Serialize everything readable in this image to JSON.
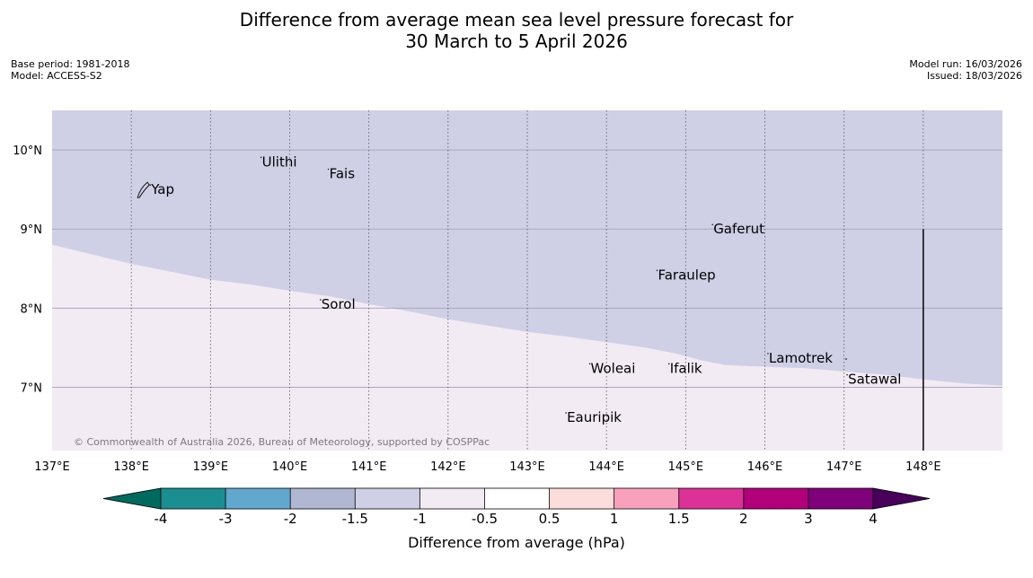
{
  "title": {
    "line1": "Difference from average mean sea level pressure forecast for",
    "line2": "30 March to 5 April 2026"
  },
  "meta_left": {
    "base_period": "Base period: 1981-2018",
    "model": "Model: ACCESS-S2"
  },
  "meta_right": {
    "model_run": "Model run: 16/03/2026",
    "issued": "Issued: 18/03/2026"
  },
  "map": {
    "lon_range": [
      137,
      149
    ],
    "lat_range": [
      6.2,
      10.5
    ],
    "lat_ticks": [
      {
        "value": 10,
        "label": "10°N"
      },
      {
        "value": 9,
        "label": "9°N"
      },
      {
        "value": 8,
        "label": "8°N"
      },
      {
        "value": 7,
        "label": "7°N"
      }
    ],
    "lon_ticks": [
      {
        "value": 137,
        "label": "137°E"
      },
      {
        "value": 138,
        "label": "138°E"
      },
      {
        "value": 139,
        "label": "139°E"
      },
      {
        "value": 140,
        "label": "140°E"
      },
      {
        "value": 141,
        "label": "141°E"
      },
      {
        "value": 142,
        "label": "142°E"
      },
      {
        "value": 143,
        "label": "143°E"
      },
      {
        "value": 144,
        "label": "144°E"
      },
      {
        "value": 145,
        "label": "145°E"
      },
      {
        "value": 146,
        "label": "146°E"
      },
      {
        "value": 147,
        "label": "147°E"
      },
      {
        "value": 148,
        "label": "148°E"
      }
    ],
    "anomaly_fields": {
      "upper_region_class": "-1.5 to -1",
      "lower_region_class": "-1 to -0.5",
      "upper_color": "#cfd0e6",
      "lower_color": "#f3ebf4",
      "boundary": [
        [
          137.0,
          8.8
        ],
        [
          137.5,
          8.68
        ],
        [
          138.0,
          8.56
        ],
        [
          138.5,
          8.46
        ],
        [
          139.0,
          8.36
        ],
        [
          139.5,
          8.3
        ],
        [
          140.0,
          8.22
        ],
        [
          140.5,
          8.15
        ],
        [
          141.0,
          8.05
        ],
        [
          141.5,
          7.96
        ],
        [
          142.0,
          7.86
        ],
        [
          142.5,
          7.78
        ],
        [
          143.0,
          7.7
        ],
        [
          143.5,
          7.64
        ],
        [
          144.0,
          7.57
        ],
        [
          144.5,
          7.5
        ],
        [
          144.9,
          7.42
        ],
        [
          145.2,
          7.34
        ],
        [
          145.5,
          7.28
        ],
        [
          146.0,
          7.26
        ],
        [
          146.5,
          7.24
        ],
        [
          147.0,
          7.2
        ],
        [
          147.5,
          7.16
        ],
        [
          148.0,
          7.1
        ],
        [
          148.5,
          7.05
        ],
        [
          149.0,
          7.02
        ]
      ]
    },
    "meridian_marker_lon": 148,
    "meridian_marker_top_lat": 9.0,
    "islands": [
      {
        "name": "Yap",
        "lon": 138.25,
        "lat": 9.5
      },
      {
        "name": "Ulithi",
        "lon": 139.65,
        "lat": 9.85
      },
      {
        "name": "Fais",
        "lon": 140.5,
        "lat": 9.7
      },
      {
        "name": "Gaferut",
        "lon": 145.35,
        "lat": 9.0
      },
      {
        "name": "Faraulep",
        "lon": 144.65,
        "lat": 8.42
      },
      {
        "name": "Sorol",
        "lon": 140.4,
        "lat": 8.05
      },
      {
        "name": "Lamotrek",
        "lon": 146.05,
        "lat": 7.37
      },
      {
        "name": "Satawal",
        "lon": 147.05,
        "lat": 7.1
      },
      {
        "name": "Woleai",
        "lon": 143.8,
        "lat": 7.24
      },
      {
        "name": "Ifalik",
        "lon": 144.8,
        "lat": 7.24
      },
      {
        "name": "Eauripik",
        "lon": 143.5,
        "lat": 6.62
      }
    ],
    "copyright": "© Commonwealth of Australia 2026, Bureau of Meteorology, supported by COSPPac"
  },
  "colorbar": {
    "label": "Difference from average (hPa)",
    "ticks": [
      "-4",
      "-3",
      "-2",
      "-1.5",
      "-1",
      "-0.5",
      "0.5",
      "1",
      "1.5",
      "2",
      "3",
      "4"
    ],
    "colors": [
      "#1b8e92",
      "#62a7ce",
      "#b0b7d3",
      "#cfd0e6",
      "#f3ebf4",
      "#ffffff",
      "#fddcdc",
      "#f9a0bd",
      "#dc3196",
      "#b2007b",
      "#7f007a"
    ],
    "low_extend_color": "#006a5e",
    "high_extend_color": "#48005a"
  }
}
